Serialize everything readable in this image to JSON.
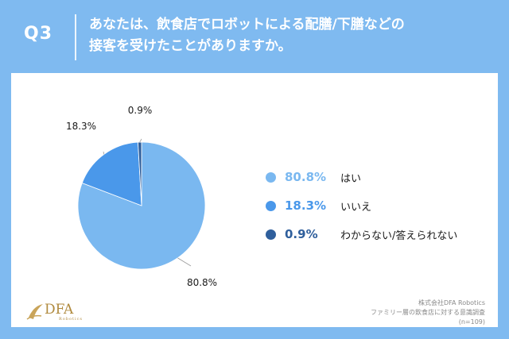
{
  "header": {
    "qnum": "Q3",
    "title_line1": "あなたは、飲食店でロボットによる配膳/下膳などの",
    "title_line2": "接客を受けたことがありますか。"
  },
  "chart_data": {
    "type": "pie",
    "title": "",
    "slices": [
      {
        "label": "はい",
        "value": 80.8,
        "display": "80.8%",
        "color": "#7ab8f0"
      },
      {
        "label": "いいえ",
        "value": 18.3,
        "display": "18.3%",
        "color": "#4a98ea"
      },
      {
        "label": "わからない/答えられない",
        "value": 0.9,
        "display": "0.9%",
        "color": "#2f5f9c"
      }
    ]
  },
  "logo": {
    "name": "DFA",
    "sub": "Robotics"
  },
  "source": {
    "line1": "株式会社DFA Robotics",
    "line2": "ファミリー層の飲食店に対する意識調査",
    "line3": "(n=109)"
  },
  "colors": {
    "background": "#7fbaf0",
    "panel": "#ffffff",
    "pct_text_1": "#7ab8f0",
    "pct_text_2": "#4a98ea",
    "pct_text_3": "#2f5f9c",
    "logo_gold": "#b08a3e"
  }
}
